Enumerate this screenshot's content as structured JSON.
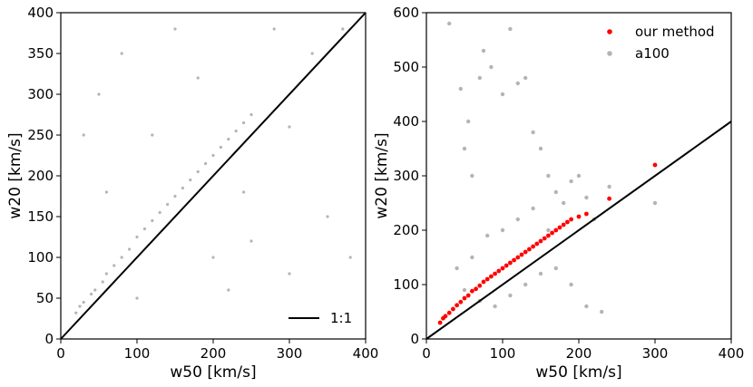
{
  "chart_data": [
    {
      "type": "scatter",
      "xlabel": "w50 [km/s]",
      "ylabel": "w20 [km/s]",
      "xlim": [
        0,
        400
      ],
      "ylim": [
        0,
        400
      ],
      "xticks": [
        "0",
        "100",
        "200",
        "300",
        "400"
      ],
      "yticks": [
        "0",
        "50",
        "100",
        "150",
        "200",
        "250",
        "300",
        "350",
        "400"
      ],
      "legend_position": "bottom-right",
      "series": [
        {
          "color": "#b4b4b4",
          "description": "dense cloud of gray points over the full range, concentrated along and just above the 1:1 line",
          "points": [
            [
              20,
              32
            ],
            [
              25,
              40
            ],
            [
              30,
              45
            ],
            [
              40,
              55
            ],
            [
              45,
              60
            ],
            [
              55,
              70
            ],
            [
              60,
              80
            ],
            [
              70,
              90
            ],
            [
              80,
              100
            ],
            [
              90,
              110
            ],
            [
              100,
              125
            ],
            [
              110,
              135
            ],
            [
              120,
              145
            ],
            [
              130,
              155
            ],
            [
              140,
              165
            ],
            [
              150,
              175
            ],
            [
              160,
              185
            ],
            [
              170,
              195
            ],
            [
              180,
              205
            ],
            [
              190,
              215
            ],
            [
              200,
              225
            ],
            [
              210,
              235
            ],
            [
              220,
              245
            ],
            [
              230,
              255
            ],
            [
              240,
              265
            ],
            [
              250,
              275
            ],
            [
              50,
              300
            ],
            [
              80,
              350
            ],
            [
              30,
              250
            ],
            [
              150,
              380
            ],
            [
              250,
              120
            ],
            [
              300,
              80
            ],
            [
              350,
              150
            ],
            [
              380,
              100
            ],
            [
              100,
              50
            ],
            [
              200,
              100
            ],
            [
              120,
              250
            ],
            [
              60,
              180
            ],
            [
              280,
              380
            ],
            [
              330,
              350
            ],
            [
              370,
              380
            ],
            [
              220,
              60
            ],
            [
              180,
              320
            ],
            [
              240,
              180
            ],
            [
              300,
              260
            ]
          ]
        },
        {
          "name": "1:1",
          "type": "line",
          "color": "#000000",
          "points": [
            [
              0,
              0
            ],
            [
              400,
              400
            ]
          ]
        }
      ]
    },
    {
      "type": "scatter",
      "xlabel": "w50 [km/s]",
      "ylabel": "w20 [km/s]",
      "xlim": [
        0,
        400
      ],
      "ylim": [
        0,
        600
      ],
      "xticks": [
        "0",
        "100",
        "200",
        "300",
        "400"
      ],
      "yticks": [
        "0",
        "100",
        "200",
        "300",
        "400",
        "500",
        "600"
      ],
      "legend_position": "top-right",
      "series": [
        {
          "name": "our method",
          "color": "#ff0000",
          "points": [
            [
              18,
              30
            ],
            [
              22,
              38
            ],
            [
              25,
              42
            ],
            [
              30,
              48
            ],
            [
              35,
              55
            ],
            [
              40,
              62
            ],
            [
              45,
              68
            ],
            [
              50,
              75
            ],
            [
              55,
              80
            ],
            [
              60,
              88
            ],
            [
              65,
              92
            ],
            [
              70,
              98
            ],
            [
              75,
              105
            ],
            [
              80,
              110
            ],
            [
              85,
              115
            ],
            [
              90,
              120
            ],
            [
              95,
              125
            ],
            [
              100,
              130
            ],
            [
              105,
              135
            ],
            [
              110,
              140
            ],
            [
              115,
              145
            ],
            [
              120,
              150
            ],
            [
              125,
              155
            ],
            [
              130,
              160
            ],
            [
              135,
              165
            ],
            [
              140,
              170
            ],
            [
              145,
              175
            ],
            [
              150,
              180
            ],
            [
              155,
              185
            ],
            [
              160,
              190
            ],
            [
              165,
              195
            ],
            [
              170,
              200
            ],
            [
              175,
              205
            ],
            [
              180,
              210
            ],
            [
              185,
              215
            ],
            [
              190,
              220
            ],
            [
              200,
              225
            ],
            [
              210,
              230
            ],
            [
              240,
              258
            ],
            [
              300,
              320
            ]
          ]
        },
        {
          "name": "a100",
          "color": "#b4b4b4",
          "points": [
            [
              30,
              580
            ],
            [
              45,
              460
            ],
            [
              50,
              350
            ],
            [
              55,
              400
            ],
            [
              60,
              300
            ],
            [
              70,
              480
            ],
            [
              75,
              530
            ],
            [
              85,
              500
            ],
            [
              100,
              450
            ],
            [
              110,
              570
            ],
            [
              120,
              470
            ],
            [
              130,
              480
            ],
            [
              140,
              380
            ],
            [
              150,
              350
            ],
            [
              160,
              300
            ],
            [
              170,
              270
            ],
            [
              180,
              250
            ],
            [
              190,
              290
            ],
            [
              200,
              300
            ],
            [
              210,
              260
            ],
            [
              220,
              220
            ],
            [
              240,
              280
            ],
            [
              300,
              250
            ],
            [
              40,
              130
            ],
            [
              60,
              150
            ],
            [
              80,
              190
            ],
            [
              100,
              200
            ],
            [
              120,
              220
            ],
            [
              140,
              240
            ],
            [
              160,
              200
            ],
            [
              50,
              90
            ],
            [
              70,
              70
            ],
            [
              90,
              60
            ],
            [
              110,
              80
            ],
            [
              130,
              100
            ],
            [
              150,
              120
            ],
            [
              170,
              130
            ],
            [
              190,
              100
            ],
            [
              210,
              60
            ],
            [
              230,
              50
            ]
          ]
        },
        {
          "type": "line",
          "color": "#000000",
          "points": [
            [
              0,
              0
            ],
            [
              400,
              400
            ]
          ]
        }
      ]
    }
  ]
}
